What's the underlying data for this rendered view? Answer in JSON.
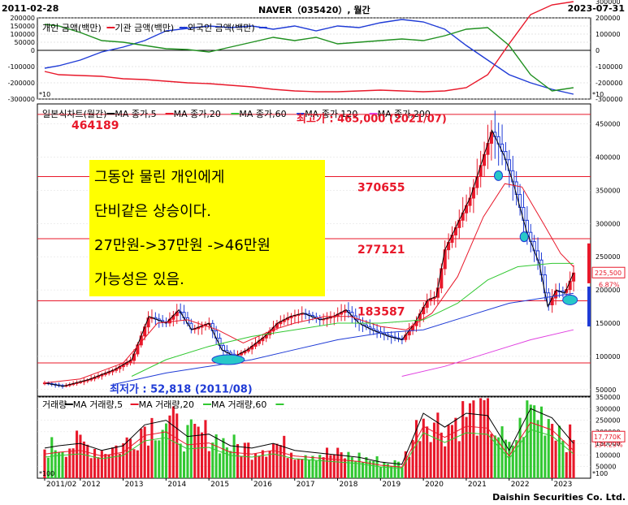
{
  "header": {
    "start_date": "2011-02-28",
    "title": "NAVER（035420）, 월간",
    "end_date": "2023-07-31"
  },
  "footer": {
    "brand": "Daishin Securities Co. Ltd."
  },
  "colors": {
    "up": "#e8182a",
    "down": "#1f3bd6",
    "ma5": "#000000",
    "ma20": "#e8182a",
    "ma60": "#32c832",
    "ma120": "#1f3bd6",
    "ma200": "#e040e0",
    "individual": "#1f3bd6",
    "institution": "#e8182a",
    "foreign": "#209020",
    "hline": "#e8182a",
    "annotation_bg": "#ffff00"
  },
  "chart_data": [
    {
      "type": "line",
      "panel": "investor-flow",
      "legend": [
        "개인 금액(백만)",
        "기관 금액(백만)",
        "외국인 금액(백만)"
      ],
      "ylim": [
        -300000,
        200000
      ],
      "y_ticks_left": [
        "200000",
        "150000",
        "100000",
        "50000",
        "0",
        "-100000",
        "-200000",
        "-300000"
      ],
      "y_ticks_right": [
        "300000",
        "200000",
        "100000",
        "0",
        "-100000",
        "-200000",
        "-300000"
      ],
      "scale_tag": "*10",
      "x": [
        2011.17,
        2011.5,
        2012,
        2012.5,
        2013,
        2013.5,
        2014,
        2014.5,
        2015,
        2015.5,
        2016,
        2016.5,
        2017,
        2017.5,
        2018,
        2018.5,
        2019,
        2019.5,
        2020,
        2020.5,
        2021,
        2021.5,
        2022,
        2022.5,
        2023,
        2023.5
      ],
      "series": [
        {
          "name": "개인 금액(백만)",
          "values": [
            -110000,
            -95000,
            -60000,
            -10000,
            20000,
            60000,
            120000,
            135000,
            150000,
            140000,
            150000,
            130000,
            150000,
            120000,
            150000,
            140000,
            170000,
            190000,
            175000,
            130000,
            30000,
            -60000,
            -150000,
            -200000,
            -240000,
            -270000
          ]
        },
        {
          "name": "기관 금액(백만)",
          "values": [
            -130000,
            -150000,
            -155000,
            -160000,
            -175000,
            -180000,
            -190000,
            -200000,
            -205000,
            -215000,
            -225000,
            -240000,
            -250000,
            -255000,
            -255000,
            -250000,
            -245000,
            -250000,
            -255000,
            -250000,
            -230000,
            -150000,
            40000,
            220000,
            280000,
            300000
          ]
        },
        {
          "name": "외국인 금액(백만)",
          "values": [
            160000,
            150000,
            110000,
            60000,
            50000,
            30000,
            10000,
            5000,
            -10000,
            20000,
            50000,
            80000,
            60000,
            80000,
            40000,
            50000,
            60000,
            70000,
            60000,
            90000,
            130000,
            140000,
            30000,
            -150000,
            -250000,
            -230000
          ]
        }
      ]
    },
    {
      "type": "candlestick",
      "panel": "price",
      "legend": [
        "일본식차트(월간)",
        "MA 종가,5",
        "MA 종가,20",
        "MA 종가,60",
        "MA 종가,120",
        "MA 종가,200"
      ],
      "ylim": [
        40000,
        480000
      ],
      "y_ticks": [
        "450000",
        "400000",
        "350000",
        "300000",
        "250000",
        "200000",
        "150000",
        "100000",
        "50000"
      ],
      "x_labels": [
        "2011/02",
        "2012",
        "2013",
        "2014",
        "2015",
        "2016",
        "2017",
        "2018",
        "2019",
        "2020",
        "2021",
        "2022",
        "2023"
      ],
      "max_label": "최고가 : 465,000 (2021/07)",
      "min_label": "최저가 : 52,818 (2011/08)",
      "current_price": "225,500",
      "current_change": "6.87%",
      "levels": [
        {
          "value": 464189,
          "label": "464189"
        },
        {
          "value": 370655,
          "label": "370655"
        },
        {
          "value": 277121,
          "label": "277121"
        },
        {
          "value": 183587,
          "label": "183587"
        },
        {
          "value": 90053,
          "label": ""
        }
      ],
      "annotation_lines": [
        "그동안 물린 개인에게",
        "단비같은 상승이다.",
        "27만원->37만원 ->46만원",
        "가능성은 있음."
      ],
      "waypoints": [
        [
          2011.17,
          60000
        ],
        [
          2011.6,
          55000
        ],
        [
          2012.2,
          65000
        ],
        [
          2012.8,
          80000
        ],
        [
          2013.2,
          95000
        ],
        [
          2013.6,
          160000
        ],
        [
          2014.0,
          150000
        ],
        [
          2014.3,
          170000
        ],
        [
          2014.6,
          140000
        ],
        [
          2015.0,
          150000
        ],
        [
          2015.3,
          110000
        ],
        [
          2015.6,
          100000
        ],
        [
          2015.9,
          110000
        ],
        [
          2016.3,
          130000
        ],
        [
          2016.6,
          150000
        ],
        [
          2016.9,
          160000
        ],
        [
          2017.2,
          165000
        ],
        [
          2017.6,
          155000
        ],
        [
          2017.9,
          160000
        ],
        [
          2018.2,
          170000
        ],
        [
          2018.5,
          150000
        ],
        [
          2018.8,
          140000
        ],
        [
          2019.2,
          130000
        ],
        [
          2019.5,
          125000
        ],
        [
          2019.8,
          150000
        ],
        [
          2020.1,
          185000
        ],
        [
          2020.3,
          190000
        ],
        [
          2020.5,
          260000
        ],
        [
          2020.8,
          300000
        ],
        [
          2021.1,
          340000
        ],
        [
          2021.4,
          400000
        ],
        [
          2021.6,
          440000
        ],
        [
          2021.9,
          400000
        ],
        [
          2022.1,
          360000
        ],
        [
          2022.4,
          290000
        ],
        [
          2022.7,
          240000
        ],
        [
          2022.9,
          175000
        ],
        [
          2023.1,
          200000
        ],
        [
          2023.3,
          195000
        ],
        [
          2023.5,
          225500
        ]
      ],
      "ma20": [
        [
          2011.17,
          60000
        ],
        [
          2012,
          66000
        ],
        [
          2013,
          90000
        ],
        [
          2013.8,
          150000
        ],
        [
          2014.5,
          155000
        ],
        [
          2015.2,
          140000
        ],
        [
          2015.8,
          120000
        ],
        [
          2016.5,
          140000
        ],
        [
          2017,
          150000
        ],
        [
          2017.7,
          160000
        ],
        [
          2018.3,
          160000
        ],
        [
          2019,
          145000
        ],
        [
          2019.6,
          140000
        ],
        [
          2020.2,
          165000
        ],
        [
          2020.8,
          220000
        ],
        [
          2021.4,
          310000
        ],
        [
          2021.9,
          360000
        ],
        [
          2022.3,
          355000
        ],
        [
          2022.8,
          300000
        ],
        [
          2023.2,
          255000
        ],
        [
          2023.5,
          235000
        ]
      ],
      "ma60": [
        [
          2013.2,
          70000
        ],
        [
          2014,
          95000
        ],
        [
          2015,
          115000
        ],
        [
          2016,
          130000
        ],
        [
          2017,
          140000
        ],
        [
          2018,
          150000
        ],
        [
          2019,
          150000
        ],
        [
          2020,
          155000
        ],
        [
          2020.8,
          180000
        ],
        [
          2021.5,
          215000
        ],
        [
          2022.2,
          235000
        ],
        [
          2023,
          240000
        ],
        [
          2023.5,
          240000
        ]
      ],
      "ma120": [
        [
          2012.8,
          58000
        ],
        [
          2014,
          75000
        ],
        [
          2015,
          85000
        ],
        [
          2016,
          95000
        ],
        [
          2017,
          110000
        ],
        [
          2018,
          125000
        ],
        [
          2019,
          135000
        ],
        [
          2020,
          140000
        ],
        [
          2021,
          160000
        ],
        [
          2022,
          180000
        ],
        [
          2023,
          190000
        ],
        [
          2023.5,
          195000
        ]
      ],
      "ma200": [
        [
          2019.5,
          70000
        ],
        [
          2020.5,
          85000
        ],
        [
          2021.5,
          105000
        ],
        [
          2022.5,
          125000
        ],
        [
          2023.5,
          140000
        ]
      ]
    },
    {
      "type": "bar",
      "panel": "volume",
      "legend": [
        "거래량",
        "MA 거래량,5",
        "MA 거래량,20",
        "MA 거래량,60"
      ],
      "ylim": [
        0,
        350000
      ],
      "y_ticks": [
        "350000",
        "300000",
        "250000",
        "200000",
        "150000",
        "100000",
        "50000"
      ],
      "scale_tag": "*100",
      "current_volume": "17,770K",
      "current_change": "134.23%",
      "x": [
        2011.17,
        2011.5,
        2012,
        2012.5,
        2013,
        2013.5,
        2014,
        2014.5,
        2015,
        2015.5,
        2016,
        2016.5,
        2017,
        2017.5,
        2018,
        2018.5,
        2019,
        2019.5,
        2020,
        2020.5,
        2021,
        2021.5,
        2022,
        2022.5,
        2023,
        2023.5
      ],
      "values": [
        130000,
        140000,
        150000,
        120000,
        140000,
        230000,
        250000,
        180000,
        190000,
        140000,
        130000,
        150000,
        120000,
        110000,
        100000,
        90000,
        70000,
        60000,
        280000,
        220000,
        280000,
        270000,
        120000,
        300000,
        260000,
        150000
      ]
    }
  ]
}
